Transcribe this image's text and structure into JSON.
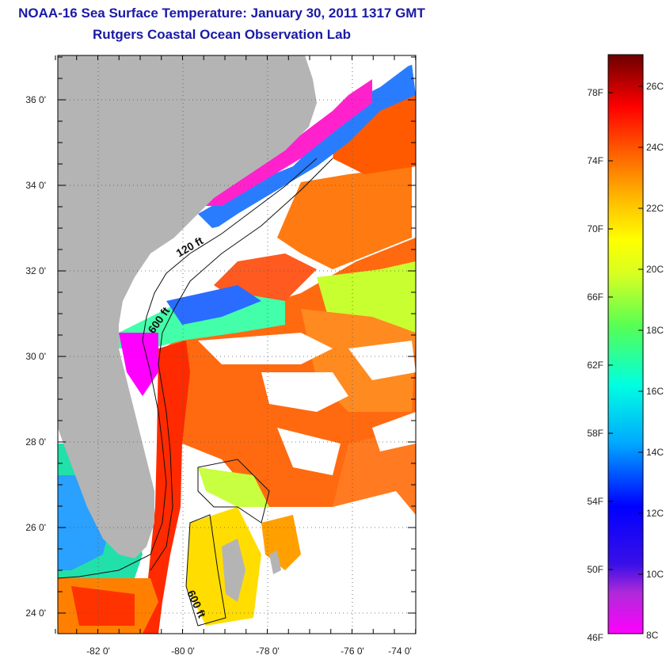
{
  "title": "NOAA-16 Sea Surface Temperature:  January 30, 2011 1317 GMT",
  "subtitle": "Rutgers Coastal Ocean Observation Lab",
  "map": {
    "lat_labels": [
      "36 0'",
      "34 0'",
      "32 0'",
      "30 0'",
      "28 0'",
      "26 0'",
      "24 0'"
    ],
    "lon_labels": [
      "-82 0'",
      "-80 0'",
      "-78 0'",
      "-76 0'",
      "-74 0'"
    ],
    "depth_contours": [
      "120 ft",
      "600 ft",
      "600 ft"
    ],
    "colors": {
      "land": "#b4b4b4",
      "cloud": "#ffffff",
      "frame": "#000000",
      "grid": "#555555"
    }
  },
  "colorbar": {
    "fahrenheit": [
      "78F",
      "74F",
      "70F",
      "66F",
      "62F",
      "58F",
      "54F",
      "50F",
      "46F"
    ],
    "celsius": [
      "26C",
      "24C",
      "22C",
      "20C",
      "18C",
      "16C",
      "14C",
      "12C",
      "10C",
      "8C"
    ],
    "gradient": [
      "#ff00ff",
      "#7a2bd6",
      "#0000ff",
      "#00aaff",
      "#00ffee",
      "#44ff66",
      "#c8ff22",
      "#ffff00",
      "#ffb000",
      "#ff5500",
      "#ff0000",
      "#6b0000"
    ]
  }
}
